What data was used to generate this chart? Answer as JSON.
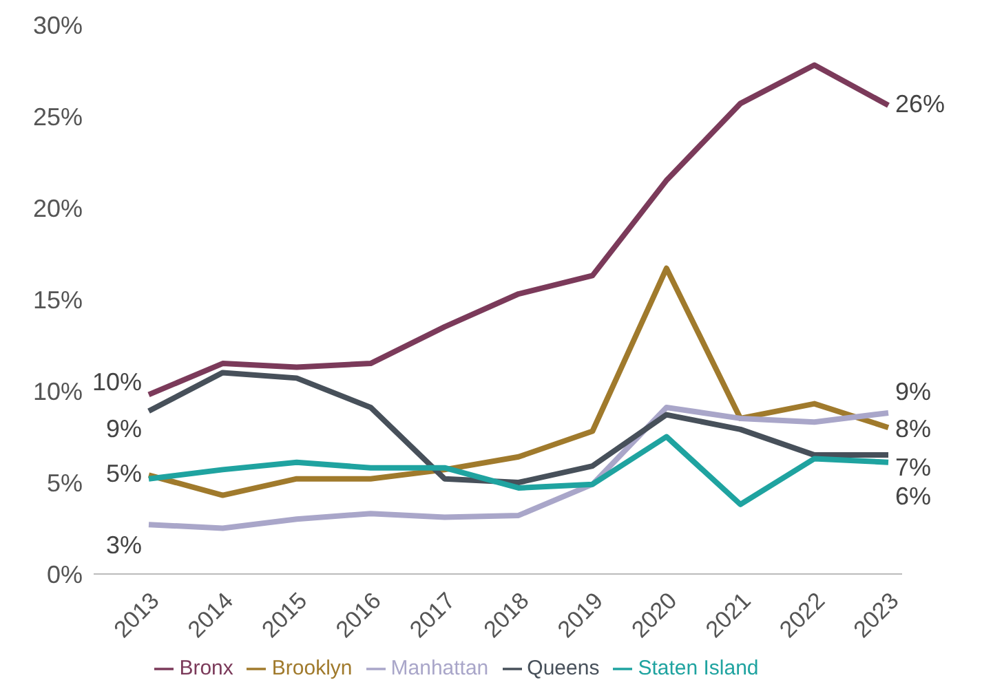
{
  "chart_data": {
    "type": "line",
    "categories": [
      "2013",
      "2014",
      "2015",
      "2016",
      "2017",
      "2018",
      "2019",
      "2020",
      "2021",
      "2022",
      "2023"
    ],
    "series": [
      {
        "name": "Bronx",
        "color": "#7b3a5a",
        "values": [
          9.8,
          11.5,
          11.3,
          11.5,
          13.5,
          15.3,
          16.3,
          21.5,
          25.7,
          27.8,
          25.6
        ],
        "value_labels": [
          "10%",
          null,
          null,
          null,
          null,
          null,
          null,
          null,
          null,
          null,
          "26%"
        ]
      },
      {
        "name": "Brooklyn",
        "color": "#a07a2c",
        "values": [
          5.4,
          4.3,
          5.2,
          5.2,
          5.7,
          6.4,
          7.8,
          16.7,
          8.5,
          9.3,
          8.0
        ],
        "value_labels": [
          "5%",
          null,
          null,
          null,
          null,
          null,
          null,
          null,
          null,
          null,
          "8%"
        ]
      },
      {
        "name": "Manhattan",
        "color": "#a9a6c9",
        "values": [
          2.7,
          2.5,
          3.0,
          3.3,
          3.1,
          3.2,
          4.9,
          9.1,
          8.5,
          8.3,
          8.8
        ],
        "value_labels": [
          "3%",
          null,
          null,
          null,
          null,
          null,
          null,
          null,
          null,
          null,
          "9%"
        ]
      },
      {
        "name": "Queens",
        "color": "#47505a",
        "values": [
          8.9,
          11.0,
          10.7,
          9.1,
          5.2,
          5.0,
          5.9,
          8.7,
          7.9,
          6.5,
          6.5
        ],
        "value_labels": [
          "9%",
          null,
          null,
          null,
          null,
          null,
          null,
          null,
          null,
          null,
          "7%"
        ]
      },
      {
        "name": "Staten Island",
        "color": "#1fa3a0",
        "values": [
          5.2,
          5.7,
          6.1,
          5.8,
          5.8,
          4.7,
          4.9,
          7.5,
          3.8,
          6.3,
          6.1
        ],
        "value_labels": [
          null,
          null,
          null,
          null,
          null,
          null,
          null,
          null,
          null,
          null,
          "6%"
        ]
      }
    ],
    "ylim": [
      0,
      30
    ],
    "yticks": [
      {
        "value": 0,
        "label": "0%"
      },
      {
        "value": 5,
        "label": "5%"
      },
      {
        "value": 10,
        "label": "10%"
      },
      {
        "value": 15,
        "label": "15%"
      },
      {
        "value": 20,
        "label": "20%"
      },
      {
        "value": 25,
        "label": "25%"
      },
      {
        "value": 30,
        "label": "30%"
      }
    ],
    "grid": false,
    "legend": "bottom",
    "marker": "none",
    "line_style": "solid"
  }
}
